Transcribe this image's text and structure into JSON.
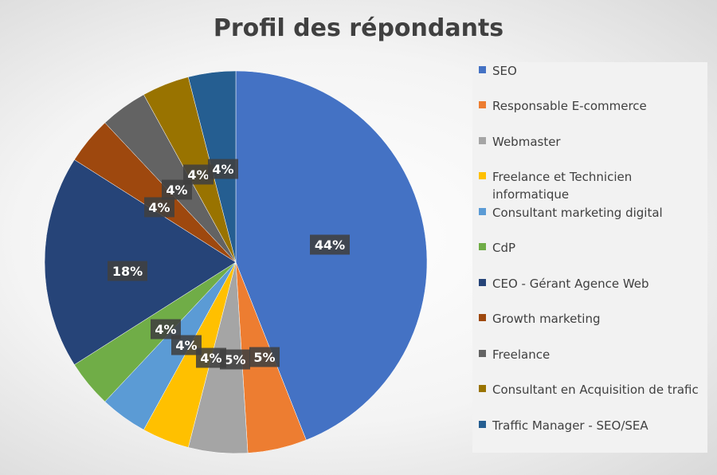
{
  "chart_data": {
    "type": "pie",
    "title": "Profil des répondants",
    "legend_position": "right",
    "slices": [
      {
        "label": "SEO",
        "value": 44,
        "display": "44%",
        "color": "#4472C4"
      },
      {
        "label": "Responsable E-commerce",
        "value": 5,
        "display": "5%",
        "color": "#ED7D31"
      },
      {
        "label": "Webmaster",
        "value": 5,
        "display": "5%",
        "color": "#A5A5A5"
      },
      {
        "label": "Freelance et Technicien informatique",
        "value": 4,
        "display": "4%",
        "color": "#FFC000"
      },
      {
        "label": "Consultant marketing digital",
        "value": 4,
        "display": "4%",
        "color": "#5B9BD5"
      },
      {
        "label": "CdP",
        "value": 4,
        "display": "4%",
        "color": "#70AD47"
      },
      {
        "label": "CEO - Gérant Agence Web",
        "value": 18,
        "display": "18%",
        "color": "#264478"
      },
      {
        "label": "Growth marketing",
        "value": 4,
        "display": "4%",
        "color": "#9E480E"
      },
      {
        "label": "Freelance",
        "value": 4,
        "display": "4%",
        "color": "#636363"
      },
      {
        "label": "Consultant en Acquisition de trafic",
        "value": 4,
        "display": "4%",
        "color": "#997300"
      },
      {
        "label": "Traffic Manager - SEO/SEA",
        "value": 4,
        "display": "4%",
        "color": "#255E91"
      }
    ]
  }
}
